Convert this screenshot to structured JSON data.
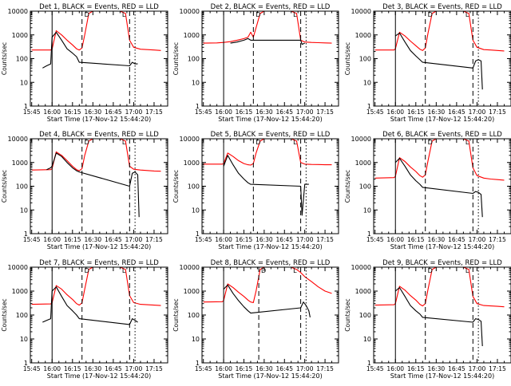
{
  "figure": {
    "y_axis_label": "Counts/sec",
    "x_axis_label": "Start Time (17-Nov-12 15:44:20)",
    "x_ticks": [
      "15:45",
      "16:00",
      "16:15",
      "16:30",
      "16:45",
      "17:00",
      "17:15"
    ],
    "y_ticks": [
      "1",
      "10",
      "100",
      "1000",
      "10000"
    ],
    "annotation_marks": [
      "D",
      "L"
    ],
    "colors": {
      "events": "#000000",
      "lld": "#ff0000",
      "axes": "#000000",
      "background": "#ffffff"
    }
  },
  "chart_data": [
    {
      "type": "line",
      "title": "Det 1, BLACK = Events, RED = LLD",
      "xlabel": "Start Time (17-Nov-12 15:44:20)",
      "ylabel": "Counts/sec",
      "xlim": [
        "15:44",
        "17:25"
      ],
      "ylim": [
        1,
        10000
      ],
      "yscale": "log",
      "markers": {
        "solid": "16:00",
        "dashed": [
          "16:22",
          "16:57"
        ],
        "dotted": "17:01"
      },
      "series": [
        {
          "name": "RED = LLD",
          "color": "#ff0000",
          "x": [
            "15:45",
            "15:59",
            "16:00",
            "16:03",
            "16:07",
            "16:11",
            "16:15",
            "16:18",
            "16:20",
            "16:22",
            "16:24",
            "16:27",
            "16:30",
            "16:35",
            "16:40",
            "16:45",
            "16:50",
            "16:54",
            "16:57",
            "17:00",
            "17:05",
            "17:10",
            "17:15",
            "17:20"
          ],
          "values": [
            230,
            230,
            250,
            1500,
            1000,
            600,
            380,
            260,
            230,
            280,
            1000,
            8000,
            10000,
            10000,
            10000,
            10000,
            10000,
            8000,
            600,
            300,
            250,
            240,
            230,
            220
          ]
        },
        {
          "name": "BLACK = Events",
          "color": "#000000",
          "x": [
            "15:53",
            "15:56",
            "15:59",
            "16:00",
            "16:03",
            "16:07",
            "16:11",
            "16:15",
            "16:18",
            "16:20",
            "16:57",
            "16:59",
            "17:01",
            "17:03"
          ],
          "values": [
            40,
            50,
            60,
            800,
            1300,
            600,
            260,
            170,
            120,
            70,
            50,
            70,
            60,
            60
          ]
        }
      ]
    },
    {
      "type": "line",
      "title": "Det 2, BLACK = Events, RED = LLD",
      "xlabel": "Start Time (17-Nov-12 15:44:20)",
      "ylabel": "Counts/sec",
      "xlim": [
        "15:44",
        "17:25"
      ],
      "ylim": [
        1,
        10000
      ],
      "yscale": "log",
      "markers": {
        "solid": "16:00",
        "dashed": [
          "16:22",
          "16:57"
        ],
        "dotted": "17:01"
      },
      "series": [
        {
          "name": "RED = LLD",
          "color": "#ff0000",
          "x": [
            "15:45",
            "15:55",
            "16:00",
            "16:05",
            "16:10",
            "16:15",
            "16:18",
            "16:20",
            "16:22",
            "16:24",
            "16:27",
            "16:30",
            "16:35",
            "16:40",
            "16:45",
            "16:50",
            "16:54",
            "16:57",
            "17:00",
            "17:05",
            "17:10",
            "17:15",
            "17:20"
          ],
          "values": [
            450,
            460,
            480,
            520,
            600,
            700,
            800,
            1300,
            800,
            2000,
            8000,
            10000,
            10000,
            10000,
            10000,
            10000,
            8000,
            600,
            500,
            480,
            470,
            460,
            450
          ]
        },
        {
          "name": "BLACK = Events",
          "color": "#000000",
          "x": [
            "16:05",
            "16:10",
            "16:15",
            "16:18",
            "16:20",
            "16:57",
            "16:58",
            "17:00"
          ],
          "values": [
            450,
            500,
            600,
            700,
            600,
            600,
            400,
            450
          ]
        }
      ]
    },
    {
      "type": "line",
      "title": "Det 3, BLACK = Events, RED = LLD",
      "xlabel": "Start Time (17-Nov-12 15:44:20)",
      "ylabel": "Counts/sec",
      "xlim": [
        "15:44",
        "17:25"
      ],
      "ylim": [
        1,
        10000
      ],
      "yscale": "log",
      "markers": {
        "solid": "16:00",
        "dashed": [
          "16:22",
          "16:57"
        ],
        "dotted": "17:01"
      },
      "series": [
        {
          "name": "RED = LLD",
          "color": "#ff0000",
          "x": [
            "15:45",
            "15:59",
            "16:00",
            "16:03",
            "16:07",
            "16:11",
            "16:15",
            "16:18",
            "16:20",
            "16:22",
            "16:24",
            "16:27",
            "16:30",
            "16:35",
            "16:40",
            "16:45",
            "16:50",
            "16:54",
            "16:57",
            "17:00",
            "17:05",
            "17:10",
            "17:15",
            "17:20"
          ],
          "values": [
            230,
            230,
            260,
            1300,
            900,
            550,
            350,
            250,
            220,
            280,
            1200,
            8000,
            10000,
            10000,
            10000,
            10000,
            10000,
            8000,
            600,
            300,
            240,
            230,
            220,
            210
          ]
        },
        {
          "name": "BLACK = Events",
          "color": "#000000",
          "x": [
            "16:00",
            "16:03",
            "16:07",
            "16:11",
            "16:15",
            "16:18",
            "16:20",
            "16:57",
            "16:59",
            "17:01",
            "17:03",
            "17:04"
          ],
          "values": [
            900,
            1200,
            500,
            220,
            130,
            90,
            70,
            40,
            80,
            90,
            80,
            5
          ]
        }
      ]
    },
    {
      "type": "line",
      "title": "Det 4, BLACK = Events, RED = LLD",
      "xlabel": "Start Time (17-Nov-12 15:44:20)",
      "ylabel": "Counts/sec",
      "xlim": [
        "15:44",
        "17:25"
      ],
      "ylim": [
        1,
        10000
      ],
      "yscale": "log",
      "markers": {
        "solid": "16:00",
        "dashed": [
          "16:22",
          "16:57"
        ],
        "dotted": "17:01"
      },
      "series": [
        {
          "name": "RED = LLD",
          "color": "#ff0000",
          "x": [
            "15:45",
            "15:59",
            "16:00",
            "16:03",
            "16:07",
            "16:11",
            "16:15",
            "16:18",
            "16:20",
            "16:22",
            "16:24",
            "16:27",
            "16:30",
            "16:35",
            "16:40",
            "16:45",
            "16:50",
            "16:54",
            "16:57",
            "17:00",
            "17:05",
            "17:10",
            "17:15",
            "17:20"
          ],
          "values": [
            480,
            500,
            550,
            2800,
            2000,
            1200,
            700,
            500,
            450,
            550,
            2000,
            8000,
            10000,
            10000,
            10000,
            10000,
            10000,
            8000,
            700,
            520,
            480,
            460,
            440,
            430
          ]
        },
        {
          "name": "BLACK = Events",
          "color": "#000000",
          "x": [
            "15:56",
            "15:59",
            "16:00",
            "16:03",
            "16:07",
            "16:11",
            "16:15",
            "16:18",
            "16:20",
            "16:57",
            "16:59",
            "17:01",
            "17:03",
            "17:04"
          ],
          "values": [
            500,
            600,
            700,
            2500,
            1800,
            1000,
            600,
            450,
            400,
            100,
            350,
            400,
            300,
            5
          ]
        }
      ]
    },
    {
      "type": "line",
      "title": "Det 5, BLACK = Events, RED = LLD",
      "xlabel": "Start Time (17-Nov-12 15:44:20)",
      "ylabel": "Counts/sec",
      "xlim": [
        "15:44",
        "17:25"
      ],
      "ylim": [
        1,
        10000
      ],
      "yscale": "log",
      "markers": {
        "solid": "16:00",
        "dashed": [
          "16:22",
          "16:57"
        ],
        "dotted": "17:01"
      },
      "series": [
        {
          "name": "RED = LLD",
          "color": "#ff0000",
          "x": [
            "15:45",
            "15:59",
            "16:00",
            "16:03",
            "16:07",
            "16:11",
            "16:15",
            "16:18",
            "16:20",
            "16:22",
            "16:24",
            "16:27",
            "16:30",
            "16:35",
            "16:40",
            "16:45",
            "16:50",
            "16:54",
            "16:57",
            "17:00",
            "17:05",
            "17:10",
            "17:15",
            "17:20"
          ],
          "values": [
            850,
            850,
            900,
            2500,
            1800,
            1200,
            900,
            800,
            780,
            900,
            2500,
            8000,
            10000,
            10000,
            10000,
            10000,
            10000,
            8000,
            1000,
            850,
            830,
            820,
            800,
            800
          ]
        },
        {
          "name": "BLACK = Events",
          "color": "#000000",
          "x": [
            "16:00",
            "16:03",
            "16:07",
            "16:11",
            "16:15",
            "16:18",
            "16:20",
            "16:57",
            "16:58",
            "17:00",
            "17:03"
          ],
          "values": [
            700,
            2000,
            800,
            350,
            200,
            140,
            120,
            100,
            6,
            120,
            120
          ]
        }
      ]
    },
    {
      "type": "line",
      "title": "Det 6, BLACK = Events, RED = LLD",
      "xlabel": "Start Time (17-Nov-12 15:44:20)",
      "ylabel": "Counts/sec",
      "xlim": [
        "15:44",
        "17:25"
      ],
      "ylim": [
        1,
        10000
      ],
      "yscale": "log",
      "markers": {
        "solid": "16:00",
        "dashed": [
          "16:22",
          "16:57"
        ],
        "dotted": "17:01"
      },
      "series": [
        {
          "name": "RED = LLD",
          "color": "#ff0000",
          "x": [
            "15:45",
            "15:59",
            "16:00",
            "16:03",
            "16:07",
            "16:11",
            "16:15",
            "16:18",
            "16:20",
            "16:22",
            "16:24",
            "16:27",
            "16:30",
            "16:35",
            "16:40",
            "16:45",
            "16:50",
            "16:54",
            "16:57",
            "17:00",
            "17:05",
            "17:10",
            "17:15",
            "17:20"
          ],
          "values": [
            220,
            230,
            260,
            1600,
            1100,
            650,
            420,
            280,
            240,
            300,
            1200,
            8000,
            10000,
            10000,
            10000,
            10000,
            10000,
            8000,
            600,
            280,
            220,
            200,
            190,
            180
          ]
        },
        {
          "name": "BLACK = Events",
          "color": "#000000",
          "x": [
            "16:00",
            "16:03",
            "16:07",
            "16:11",
            "16:15",
            "16:18",
            "16:20",
            "16:57",
            "16:59",
            "17:01",
            "17:03",
            "17:04"
          ],
          "values": [
            1000,
            1500,
            700,
            300,
            170,
            120,
            90,
            50,
            60,
            55,
            45,
            5
          ]
        }
      ]
    },
    {
      "type": "line",
      "title": "Det 7, BLACK = Events, RED = LLD",
      "xlabel": "Start Time (17-Nov-12 15:44:20)",
      "ylabel": "Counts/sec",
      "xlim": [
        "15:44",
        "17:25"
      ],
      "ylim": [
        1,
        10000
      ],
      "yscale": "log",
      "markers": {
        "solid": "16:00",
        "dashed": [
          "16:22",
          "16:57"
        ],
        "dotted": "17:01"
      },
      "series": [
        {
          "name": "RED = LLD",
          "color": "#ff0000",
          "x": [
            "15:45",
            "15:59",
            "16:00",
            "16:03",
            "16:07",
            "16:11",
            "16:15",
            "16:18",
            "16:20",
            "16:22",
            "16:24",
            "16:27",
            "16:30",
            "16:35",
            "16:40",
            "16:45",
            "16:50",
            "16:54",
            "16:57",
            "17:00",
            "17:05",
            "17:10",
            "17:15",
            "17:20"
          ],
          "values": [
            280,
            290,
            320,
            1700,
            1200,
            700,
            450,
            300,
            260,
            320,
            1200,
            8000,
            10000,
            10000,
            10000,
            10000,
            10000,
            8000,
            650,
            330,
            280,
            270,
            260,
            250
          ]
        },
        {
          "name": "BLACK = Events",
          "color": "#000000",
          "x": [
            "15:53",
            "15:56",
            "15:59",
            "16:00",
            "16:03",
            "16:07",
            "16:11",
            "16:15",
            "16:18",
            "16:20",
            "16:57",
            "16:59",
            "17:01",
            "17:03"
          ],
          "values": [
            50,
            60,
            70,
            1000,
            1500,
            600,
            250,
            150,
            100,
            70,
            40,
            70,
            60,
            50
          ]
        }
      ]
    },
    {
      "type": "line",
      "title": "Det 8, BLACK = Events, RED = LLD",
      "xlabel": "Start Time (17-Nov-12 15:44:20)",
      "ylabel": "Counts/sec",
      "xlim": [
        "15:44",
        "17:25"
      ],
      "ylim": [
        1,
        10000
      ],
      "yscale": "log",
      "markers": {
        "solid": "16:00",
        "dashed": [
          "16:26",
          "16:57"
        ],
        "dotted": "17:01"
      },
      "series": [
        {
          "name": "RED = LLD",
          "color": "#ff0000",
          "x": [
            "15:45",
            "15:59",
            "16:00",
            "16:03",
            "16:07",
            "16:11",
            "16:15",
            "16:18",
            "16:20",
            "16:22",
            "16:24",
            "16:27",
            "16:30",
            "16:35",
            "16:40",
            "16:45",
            "16:50",
            "16:54",
            "16:57",
            "17:00",
            "17:05",
            "17:10",
            "17:15",
            "17:20"
          ],
          "values": [
            350,
            360,
            400,
            2000,
            1400,
            900,
            600,
            420,
            350,
            330,
            1000,
            8000,
            10000,
            10000,
            10000,
            10000,
            10000,
            8000,
            6000,
            4000,
            2500,
            1500,
            1000,
            800
          ]
        },
        {
          "name": "BLACK = Events",
          "color": "#000000",
          "x": [
            "16:00",
            "16:03",
            "16:07",
            "16:11",
            "16:15",
            "16:18",
            "16:20",
            "16:57",
            "16:59",
            "17:01",
            "17:03",
            "17:04"
          ],
          "values": [
            1200,
            1800,
            800,
            400,
            220,
            150,
            120,
            200,
            350,
            250,
            150,
            80
          ]
        }
      ]
    },
    {
      "type": "line",
      "title": "Det 9, BLACK = Events, RED = LLD",
      "xlabel": "Start Time (17-Nov-12 15:44:20)",
      "ylabel": "Counts/sec",
      "xlim": [
        "15:44",
        "17:25"
      ],
      "ylim": [
        1,
        10000
      ],
      "yscale": "log",
      "markers": {
        "solid": "16:00",
        "dashed": [
          "16:22",
          "16:57"
        ],
        "dotted": "17:01"
      },
      "series": [
        {
          "name": "RED = LLD",
          "color": "#ff0000",
          "x": [
            "15:45",
            "15:59",
            "16:00",
            "16:03",
            "16:07",
            "16:11",
            "16:15",
            "16:18",
            "16:20",
            "16:22",
            "16:24",
            "16:27",
            "16:30",
            "16:35",
            "16:40",
            "16:45",
            "16:50",
            "16:54",
            "16:57",
            "17:00",
            "17:05",
            "17:10",
            "17:15",
            "17:20"
          ],
          "values": [
            260,
            270,
            300,
            1600,
            1100,
            650,
            420,
            280,
            240,
            300,
            1200,
            8000,
            10000,
            10000,
            10000,
            10000,
            10000,
            8000,
            600,
            300,
            250,
            240,
            230,
            220
          ]
        },
        {
          "name": "BLACK = Events",
          "color": "#000000",
          "x": [
            "16:00",
            "16:03",
            "16:07",
            "16:11",
            "16:15",
            "16:18",
            "16:20",
            "16:57",
            "16:59",
            "17:01",
            "17:03",
            "17:04"
          ],
          "values": [
            1000,
            1400,
            600,
            250,
            150,
            110,
            80,
            50,
            70,
            65,
            55,
            5
          ]
        }
      ]
    }
  ]
}
